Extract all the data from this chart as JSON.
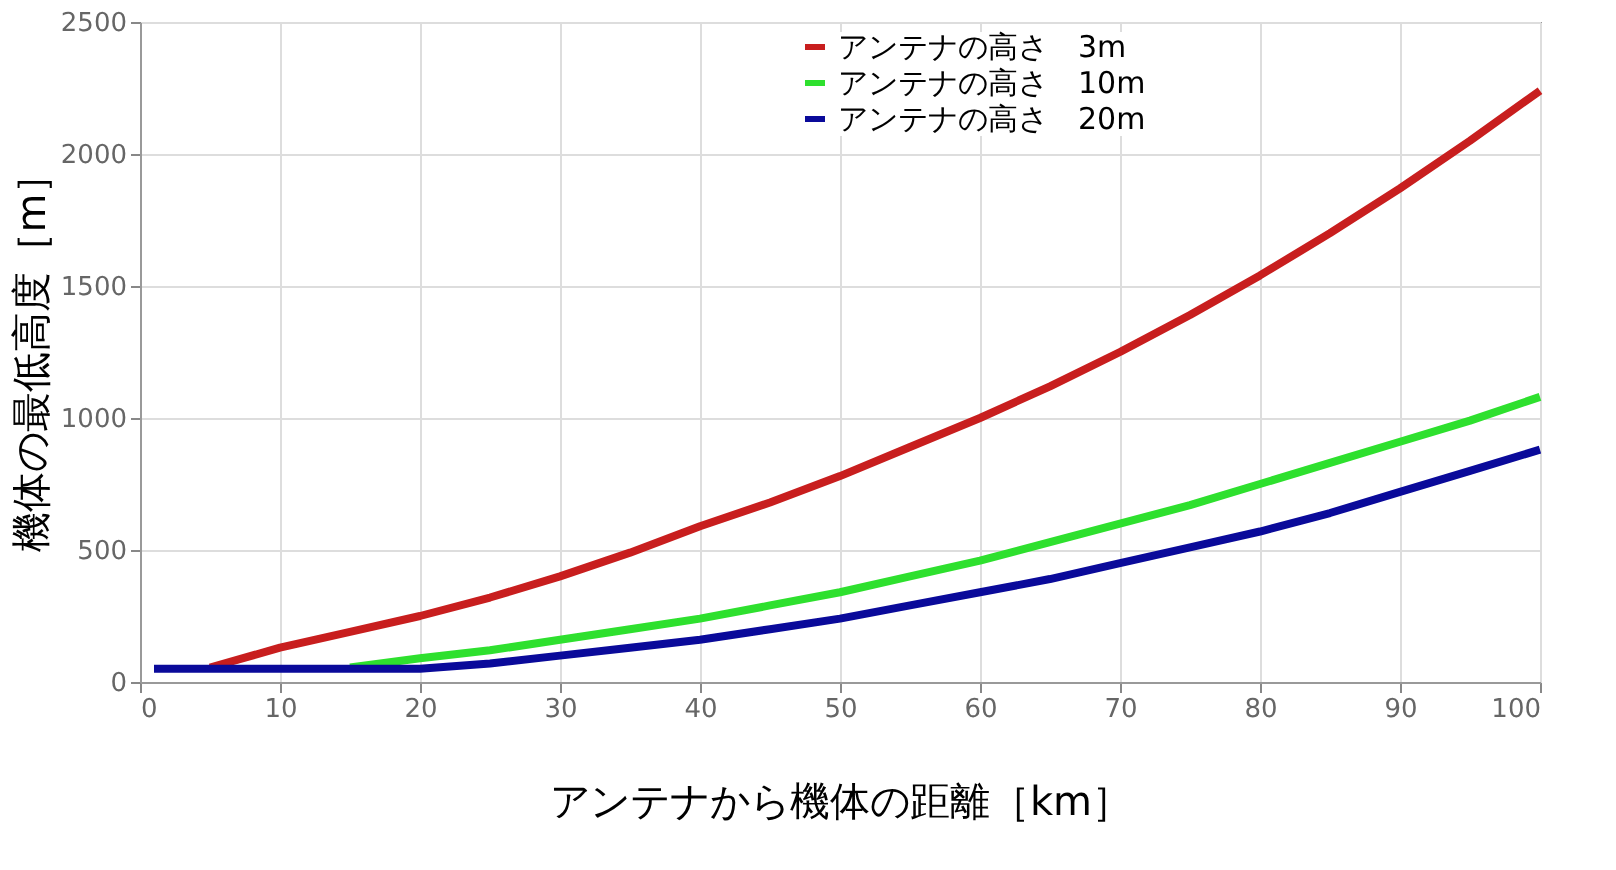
{
  "chart_data": {
    "type": "line",
    "xlabel": "アンテナから機体の距離［km］",
    "ylabel": "機体の最低高度［m］",
    "x": [
      1,
      5,
      10,
      15,
      20,
      25,
      30,
      35,
      40,
      45,
      50,
      55,
      60,
      65,
      70,
      75,
      80,
      85,
      90,
      95,
      100
    ],
    "series": [
      {
        "name": "アンテナの高さ　3m",
        "color": "#c81e1e",
        "values": [
          null,
          55,
          130,
          190,
          250,
          320,
          400,
          490,
          590,
          680,
          780,
          890,
          1000,
          1120,
          1250,
          1390,
          1540,
          1700,
          1870,
          2050,
          2240
        ]
      },
      {
        "name": "アンテナの高さ　10m",
        "color": "#2ee02e",
        "values": [
          null,
          null,
          null,
          55,
          90,
          120,
          160,
          200,
          240,
          290,
          340,
          400,
          460,
          530,
          600,
          670,
          750,
          830,
          910,
          990,
          1080
        ]
      },
      {
        "name": "アンテナの高さ　20m",
        "color": "#0a0a9a",
        "values": [
          50,
          50,
          50,
          50,
          50,
          70,
          100,
          130,
          160,
          200,
          240,
          290,
          340,
          390,
          450,
          510,
          570,
          640,
          720,
          800,
          880
        ]
      }
    ],
    "xlim": [
      0,
      100
    ],
    "xticks": [
      0,
      10,
      20,
      30,
      40,
      50,
      60,
      70,
      80,
      90,
      100
    ],
    "ylim": [
      0,
      2500
    ],
    "yticks": [
      0,
      500,
      1000,
      1500,
      2000,
      2500
    ],
    "grid": true,
    "legend": "top right",
    "marker": "none",
    "line_style": "solid"
  }
}
